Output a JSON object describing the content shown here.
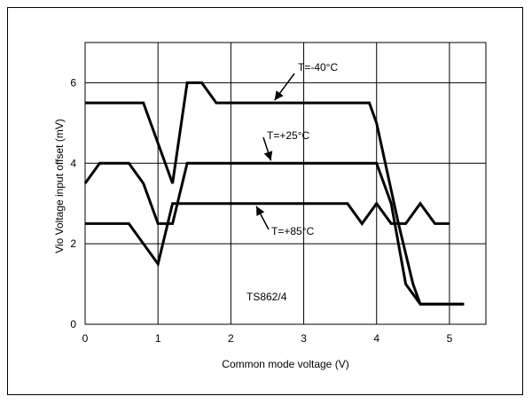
{
  "chart_data": {
    "type": "line",
    "title": "",
    "xlabel": "Common mode voltage (V)",
    "ylabel": "Vio Voltage input offset  (mV)",
    "xlim": [
      0,
      5.5
    ],
    "ylim": [
      0,
      7
    ],
    "x_ticks": [
      0,
      1,
      2,
      3,
      4,
      5
    ],
    "x_tick_labels": [
      "0",
      "1",
      "2",
      "3",
      "4",
      "5"
    ],
    "y_ticks": [
      0,
      2,
      4,
      6
    ],
    "y_tick_labels": [
      "0",
      "2",
      "4",
      "6"
    ],
    "grid": true,
    "legend": "none",
    "line_color": "#000000",
    "series": [
      {
        "name": "T=-40°C",
        "x": [
          0,
          0.8,
          1.2,
          1.4,
          1.6,
          1.8,
          3.9,
          4.0,
          4.3,
          4.5,
          4.6,
          5.2
        ],
        "y": [
          5.5,
          5.5,
          3.5,
          6.0,
          6.0,
          5.5,
          5.5,
          5.0,
          2.5,
          1.0,
          0.5,
          0.5
        ]
      },
      {
        "name": "T=+25°C",
        "x": [
          0,
          0.2,
          0.6,
          0.8,
          1.0,
          1.2,
          1.4,
          4.0,
          4.2,
          4.4,
          4.6,
          5.2
        ],
        "y": [
          3.5,
          4.0,
          4.0,
          3.5,
          2.5,
          2.5,
          4.0,
          4.0,
          3.0,
          1.0,
          0.5,
          0.5
        ]
      },
      {
        "name": "T=+85°C",
        "x": [
          0,
          0.6,
          1.0,
          1.2,
          3.6,
          3.8,
          4.0,
          4.2,
          4.4,
          4.6,
          4.8,
          5.0
        ],
        "y": [
          2.5,
          2.5,
          1.5,
          3.0,
          3.0,
          2.5,
          3.0,
          2.5,
          2.5,
          3.0,
          2.5,
          2.5
        ]
      }
    ],
    "annotations": [
      {
        "text": "T=-40°C"
      },
      {
        "text": "T=+25°C"
      },
      {
        "text": "T=+85°C"
      },
      {
        "text": "TS862/4"
      }
    ]
  }
}
